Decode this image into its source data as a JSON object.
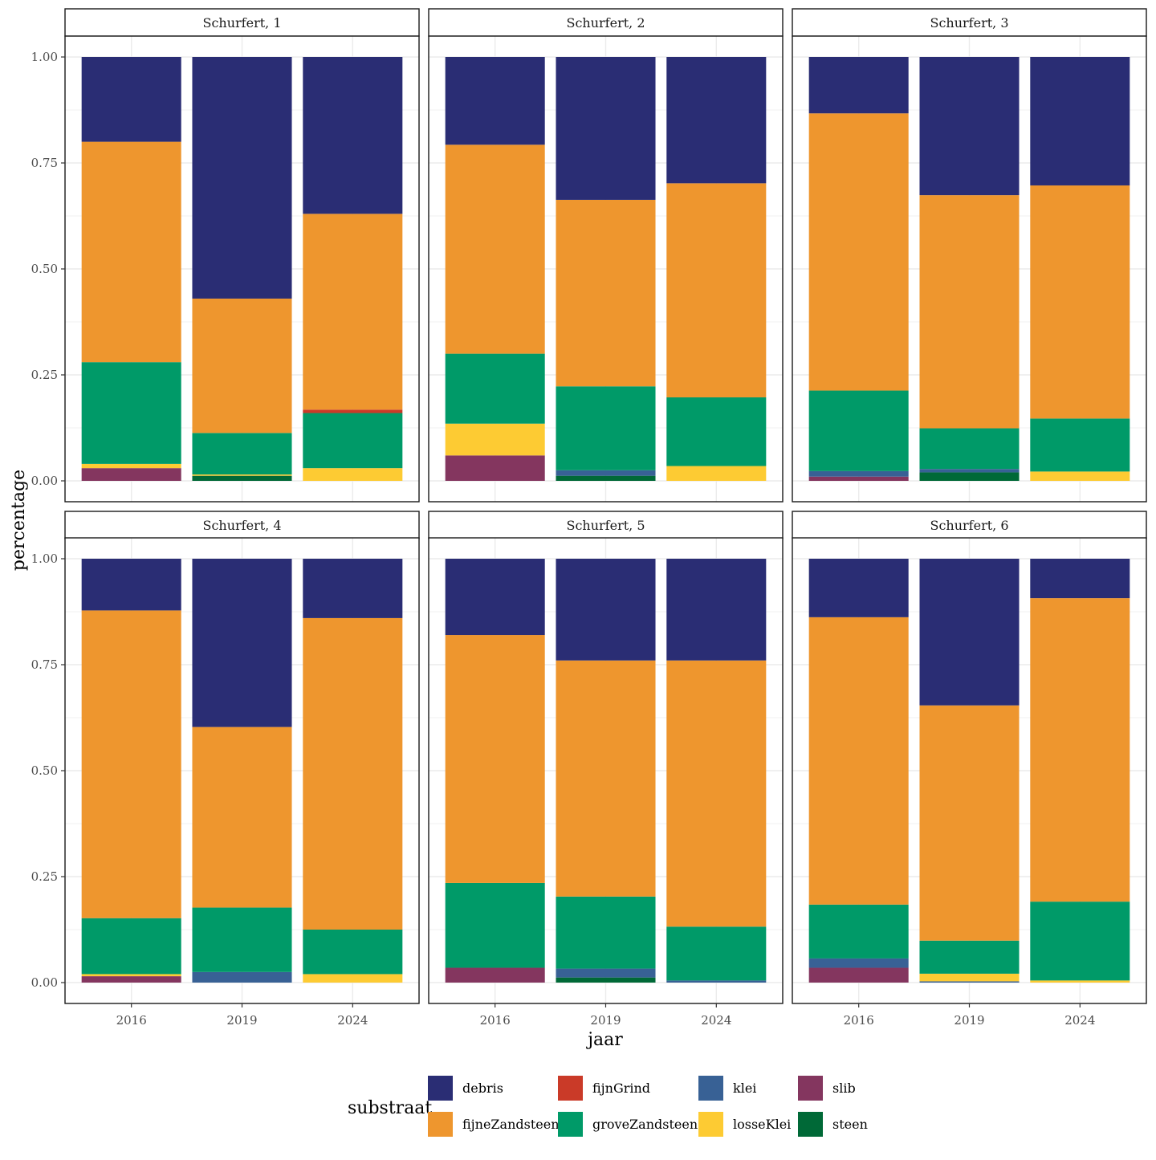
{
  "chart_data": {
    "type": "bar",
    "stacked": true,
    "xlabel": "jaar",
    "ylabel": "percentage",
    "ylim": [
      0,
      1
    ],
    "yticks": [
      0,
      0.25,
      0.5,
      0.75,
      1
    ],
    "ytick_labels": [
      "0.00",
      "0.25",
      "0.50",
      "0.75",
      "1.00"
    ],
    "categories": [
      "2016",
      "2019",
      "2024"
    ],
    "legend_title": "substraat",
    "legend_position": "bottom",
    "stack_order": [
      "slib",
      "steen",
      "klei",
      "losseKlei",
      "groveZandsteen",
      "fijnGrind",
      "fijneZandsteen",
      "debris"
    ],
    "legend": [
      {
        "name": "debris",
        "color": "#2A2D74"
      },
      {
        "name": "fijneZandsteen",
        "color": "#EE962E"
      },
      {
        "name": "fijnGrind",
        "color": "#CA3A28"
      },
      {
        "name": "groveZandsteen",
        "color": "#009A68"
      },
      {
        "name": "klei",
        "color": "#386195"
      },
      {
        "name": "losseKlei",
        "color": "#FDCB33"
      },
      {
        "name": "slib",
        "color": "#84365F"
      },
      {
        "name": "steen",
        "color": "#006937"
      }
    ],
    "panels": [
      {
        "title": "Schurfert, 1",
        "series": [
          {
            "name": "slib",
            "values": [
              0.03,
              0.0,
              0.0
            ]
          },
          {
            "name": "steen",
            "values": [
              0.0,
              0.012,
              0.0
            ]
          },
          {
            "name": "klei",
            "values": [
              0.0,
              0.0,
              0.0
            ]
          },
          {
            "name": "losseKlei",
            "values": [
              0.01,
              0.003,
              0.03
            ]
          },
          {
            "name": "groveZandsteen",
            "values": [
              0.24,
              0.098,
              0.13
            ]
          },
          {
            "name": "fijnGrind",
            "values": [
              0.0,
              0.0,
              0.008
            ]
          },
          {
            "name": "fijneZandsteen",
            "values": [
              0.52,
              0.317,
              0.462
            ]
          },
          {
            "name": "debris",
            "values": [
              0.2,
              0.57,
              0.37
            ]
          }
        ]
      },
      {
        "title": "Schurfert, 2",
        "series": [
          {
            "name": "slib",
            "values": [
              0.06,
              0.0,
              0.0
            ]
          },
          {
            "name": "steen",
            "values": [
              0.0,
              0.012,
              0.0
            ]
          },
          {
            "name": "klei",
            "values": [
              0.0,
              0.013,
              0.0
            ]
          },
          {
            "name": "losseKlei",
            "values": [
              0.075,
              0.0,
              0.035
            ]
          },
          {
            "name": "groveZandsteen",
            "values": [
              0.165,
              0.198,
              0.162
            ]
          },
          {
            "name": "fijnGrind",
            "values": [
              0.0,
              0.0,
              0.0
            ]
          },
          {
            "name": "fijneZandsteen",
            "values": [
              0.493,
              0.44,
              0.505
            ]
          },
          {
            "name": "debris",
            "values": [
              0.207,
              0.337,
              0.298
            ]
          }
        ]
      },
      {
        "title": "Schurfert, 3",
        "series": [
          {
            "name": "slib",
            "values": [
              0.01,
              0.0,
              0.0
            ]
          },
          {
            "name": "steen",
            "values": [
              0.0,
              0.02,
              0.0
            ]
          },
          {
            "name": "klei",
            "values": [
              0.013,
              0.008,
              0.0
            ]
          },
          {
            "name": "losseKlei",
            "values": [
              0.0,
              0.0,
              0.022
            ]
          },
          {
            "name": "groveZandsteen",
            "values": [
              0.19,
              0.096,
              0.125
            ]
          },
          {
            "name": "fijnGrind",
            "values": [
              0.0,
              0.0,
              0.0
            ]
          },
          {
            "name": "fijneZandsteen",
            "values": [
              0.654,
              0.55,
              0.55
            ]
          },
          {
            "name": "debris",
            "values": [
              0.133,
              0.326,
              0.303
            ]
          }
        ]
      },
      {
        "title": "Schurfert, 4",
        "series": [
          {
            "name": "slib",
            "values": [
              0.015,
              0.0,
              0.0
            ]
          },
          {
            "name": "steen",
            "values": [
              0.0,
              0.0,
              0.0
            ]
          },
          {
            "name": "klei",
            "values": [
              0.0,
              0.025,
              0.0
            ]
          },
          {
            "name": "losseKlei",
            "values": [
              0.005,
              0.0,
              0.02
            ]
          },
          {
            "name": "groveZandsteen",
            "values": [
              0.132,
              0.152,
              0.105
            ]
          },
          {
            "name": "fijnGrind",
            "values": [
              0.0,
              0.0,
              0.0
            ]
          },
          {
            "name": "fijneZandsteen",
            "values": [
              0.726,
              0.426,
              0.735
            ]
          },
          {
            "name": "debris",
            "values": [
              0.122,
              0.397,
              0.14
            ]
          }
        ]
      },
      {
        "title": "Schurfert, 5",
        "series": [
          {
            "name": "slib",
            "values": [
              0.035,
              0.0,
              0.0
            ]
          },
          {
            "name": "steen",
            "values": [
              0.0,
              0.012,
              0.0
            ]
          },
          {
            "name": "klei",
            "values": [
              0.0,
              0.021,
              0.005
            ]
          },
          {
            "name": "losseKlei",
            "values": [
              0.0,
              0.0,
              0.0
            ]
          },
          {
            "name": "groveZandsteen",
            "values": [
              0.2,
              0.17,
              0.127
            ]
          },
          {
            "name": "fijnGrind",
            "values": [
              0.0,
              0.0,
              0.0
            ]
          },
          {
            "name": "fijneZandsteen",
            "values": [
              0.585,
              0.557,
              0.628
            ]
          },
          {
            "name": "debris",
            "values": [
              0.18,
              0.24,
              0.24
            ]
          }
        ]
      },
      {
        "title": "Schurfert, 6",
        "series": [
          {
            "name": "slib",
            "values": [
              0.035,
              0.0,
              0.0
            ]
          },
          {
            "name": "steen",
            "values": [
              0.0,
              0.0,
              0.0
            ]
          },
          {
            "name": "klei",
            "values": [
              0.022,
              0.003,
              0.0
            ]
          },
          {
            "name": "losseKlei",
            "values": [
              0.0,
              0.018,
              0.005
            ]
          },
          {
            "name": "groveZandsteen",
            "values": [
              0.127,
              0.078,
              0.186
            ]
          },
          {
            "name": "fijnGrind",
            "values": [
              0.0,
              0.0,
              0.0
            ]
          },
          {
            "name": "fijneZandsteen",
            "values": [
              0.678,
              0.555,
              0.716
            ]
          },
          {
            "name": "debris",
            "values": [
              0.138,
              0.346,
              0.093
            ]
          }
        ]
      }
    ]
  }
}
